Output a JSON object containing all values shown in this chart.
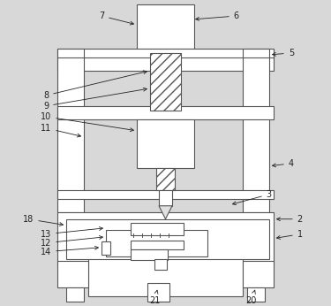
{
  "bg_color": "#d8d8d8",
  "line_color": "#555555",
  "label_color": "#222222",
  "fc_main": "#f2f2f2",
  "fc_white": "#ffffff"
}
